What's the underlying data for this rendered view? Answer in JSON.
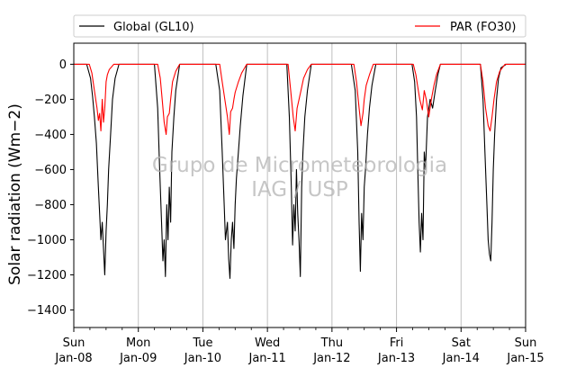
{
  "chart_data": {
    "type": "line",
    "ylabel": "Solar radiation",
    "ylabel_unit": "(Wm−2)",
    "ylim": [
      -1500,
      120
    ],
    "yticks": [
      0,
      -200,
      -400,
      -600,
      -800,
      -1000,
      -1200,
      -1400
    ],
    "xlim": [
      "2018-01-08",
      "2018-01-15"
    ],
    "xticks": [
      {
        "day": "Sun",
        "date": "Jan-08"
      },
      {
        "day": "Mon",
        "date": "Jan-09"
      },
      {
        "day": "Tue",
        "date": "Jan-10"
      },
      {
        "day": "Wed",
        "date": "Jan-11"
      },
      {
        "day": "Thu",
        "date": "Jan-12"
      },
      {
        "day": "Fri",
        "date": "Jan-13"
      },
      {
        "day": "Sat",
        "date": "Jan-14"
      },
      {
        "day": "Sun",
        "date": "Jan-15"
      }
    ],
    "grid": "vertical at day boundaries",
    "legend_position": "top, above plot",
    "watermark": [
      "Grupo de Micrometeorologia",
      "IAG / USP"
    ],
    "series": [
      {
        "name": "Global (GL10)",
        "color": "#000000",
        "points": [
          [
            0.0,
            0
          ],
          [
            0.2,
            0
          ],
          [
            0.26,
            -80
          ],
          [
            0.29,
            -180
          ],
          [
            0.32,
            -300
          ],
          [
            0.35,
            -450
          ],
          [
            0.38,
            -700
          ],
          [
            0.4,
            -850
          ],
          [
            0.42,
            -1000
          ],
          [
            0.44,
            -900
          ],
          [
            0.46,
            -1050
          ],
          [
            0.48,
            -1200
          ],
          [
            0.5,
            -950
          ],
          [
            0.52,
            -800
          ],
          [
            0.54,
            -600
          ],
          [
            0.57,
            -400
          ],
          [
            0.6,
            -200
          ],
          [
            0.64,
            -80
          ],
          [
            0.7,
            0
          ],
          [
            1.0,
            0
          ],
          [
            1.0,
            0
          ],
          [
            1.25,
            0
          ],
          [
            1.3,
            -250
          ],
          [
            1.33,
            -600
          ],
          [
            1.36,
            -900
          ],
          [
            1.38,
            -1120
          ],
          [
            1.4,
            -1000
          ],
          [
            1.42,
            -1210
          ],
          [
            1.44,
            -800
          ],
          [
            1.46,
            -1000
          ],
          [
            1.48,
            -700
          ],
          [
            1.5,
            -900
          ],
          [
            1.52,
            -500
          ],
          [
            1.55,
            -300
          ],
          [
            1.58,
            -150
          ],
          [
            1.64,
            0
          ],
          [
            2.0,
            0
          ],
          [
            2.0,
            0
          ],
          [
            2.2,
            0
          ],
          [
            2.26,
            -150
          ],
          [
            2.3,
            -500
          ],
          [
            2.33,
            -800
          ],
          [
            2.35,
            -1000
          ],
          [
            2.38,
            -900
          ],
          [
            2.4,
            -1110
          ],
          [
            2.42,
            -1220
          ],
          [
            2.44,
            -1000
          ],
          [
            2.46,
            -900
          ],
          [
            2.48,
            -1050
          ],
          [
            2.5,
            -800
          ],
          [
            2.52,
            -650
          ],
          [
            2.55,
            -500
          ],
          [
            2.58,
            -350
          ],
          [
            2.62,
            -180
          ],
          [
            2.68,
            0
          ],
          [
            3.0,
            0
          ],
          [
            3.0,
            0
          ],
          [
            3.3,
            0
          ],
          [
            3.34,
            -300
          ],
          [
            3.37,
            -700
          ],
          [
            3.39,
            -1030
          ],
          [
            3.41,
            -800
          ],
          [
            3.43,
            -950
          ],
          [
            3.45,
            -600
          ],
          [
            3.47,
            -850
          ],
          [
            3.49,
            -1010
          ],
          [
            3.51,
            -1210
          ],
          [
            3.53,
            -700
          ],
          [
            3.55,
            -500
          ],
          [
            3.58,
            -300
          ],
          [
            3.62,
            -150
          ],
          [
            3.68,
            0
          ],
          [
            4.0,
            0
          ],
          [
            4.0,
            0
          ],
          [
            4.3,
            0
          ],
          [
            4.36,
            -150
          ],
          [
            4.4,
            -500
          ],
          [
            4.42,
            -900
          ],
          [
            4.44,
            -1180
          ],
          [
            4.46,
            -850
          ],
          [
            4.48,
            -1000
          ],
          [
            4.5,
            -700
          ],
          [
            4.52,
            -600
          ],
          [
            4.55,
            -400
          ],
          [
            4.58,
            -250
          ],
          [
            4.62,
            -120
          ],
          [
            4.68,
            0
          ],
          [
            5.0,
            0
          ],
          [
            5.0,
            0
          ],
          [
            5.24,
            0
          ],
          [
            5.28,
            -100
          ],
          [
            5.31,
            -300
          ],
          [
            5.33,
            -600
          ],
          [
            5.35,
            -900
          ],
          [
            5.37,
            -1070
          ],
          [
            5.39,
            -850
          ],
          [
            5.41,
            -1000
          ],
          [
            5.43,
            -500
          ],
          [
            5.45,
            -600
          ],
          [
            5.48,
            -300
          ],
          [
            5.52,
            -200
          ],
          [
            5.56,
            -250
          ],
          [
            5.6,
            -150
          ],
          [
            5.64,
            -60
          ],
          [
            5.68,
            0
          ],
          [
            6.0,
            0
          ],
          [
            6.0,
            0
          ],
          [
            6.3,
            0
          ],
          [
            6.34,
            -200
          ],
          [
            6.37,
            -500
          ],
          [
            6.4,
            -800
          ],
          [
            6.42,
            -1000
          ],
          [
            6.44,
            -1080
          ],
          [
            6.46,
            -1120
          ],
          [
            6.48,
            -900
          ],
          [
            6.5,
            -600
          ],
          [
            6.52,
            -400
          ],
          [
            6.55,
            -200
          ],
          [
            6.58,
            -80
          ],
          [
            6.62,
            -20
          ],
          [
            6.7,
            0
          ],
          [
            7.0,
            0
          ]
        ]
      },
      {
        "name": "PAR (FO30)",
        "color": "#ff0000",
        "points": [
          [
            0.0,
            0
          ],
          [
            0.24,
            0
          ],
          [
            0.28,
            -50
          ],
          [
            0.32,
            -150
          ],
          [
            0.36,
            -250
          ],
          [
            0.38,
            -320
          ],
          [
            0.4,
            -280
          ],
          [
            0.42,
            -380
          ],
          [
            0.44,
            -200
          ],
          [
            0.46,
            -330
          ],
          [
            0.48,
            -250
          ],
          [
            0.5,
            -100
          ],
          [
            0.52,
            -60
          ],
          [
            0.55,
            -30
          ],
          [
            0.62,
            0
          ],
          [
            1.0,
            0
          ],
          [
            1.0,
            0
          ],
          [
            1.3,
            0
          ],
          [
            1.34,
            -80
          ],
          [
            1.37,
            -200
          ],
          [
            1.4,
            -330
          ],
          [
            1.43,
            -400
          ],
          [
            1.45,
            -300
          ],
          [
            1.48,
            -280
          ],
          [
            1.5,
            -200
          ],
          [
            1.53,
            -100
          ],
          [
            1.58,
            -40
          ],
          [
            1.64,
            0
          ],
          [
            2.0,
            0
          ],
          [
            2.0,
            0
          ],
          [
            2.26,
            0
          ],
          [
            2.3,
            -100
          ],
          [
            2.34,
            -200
          ],
          [
            2.38,
            -300
          ],
          [
            2.41,
            -400
          ],
          [
            2.43,
            -270
          ],
          [
            2.46,
            -250
          ],
          [
            2.48,
            -200
          ],
          [
            2.5,
            -160
          ],
          [
            2.55,
            -100
          ],
          [
            2.6,
            -50
          ],
          [
            2.68,
            0
          ],
          [
            3.0,
            0
          ],
          [
            3.0,
            0
          ],
          [
            3.32,
            0
          ],
          [
            3.36,
            -150
          ],
          [
            3.4,
            -300
          ],
          [
            3.43,
            -380
          ],
          [
            3.46,
            -250
          ],
          [
            3.49,
            -200
          ],
          [
            3.52,
            -150
          ],
          [
            3.56,
            -80
          ],
          [
            3.62,
            -30
          ],
          [
            3.68,
            0
          ],
          [
            4.0,
            0
          ],
          [
            4.0,
            0
          ],
          [
            4.34,
            0
          ],
          [
            4.38,
            -100
          ],
          [
            4.42,
            -250
          ],
          [
            4.45,
            -350
          ],
          [
            4.48,
            -280
          ],
          [
            4.5,
            -200
          ],
          [
            4.53,
            -120
          ],
          [
            4.58,
            -60
          ],
          [
            4.64,
            0
          ],
          [
            5.0,
            0
          ],
          [
            5.0,
            0
          ],
          [
            5.26,
            0
          ],
          [
            5.3,
            -60
          ],
          [
            5.33,
            -130
          ],
          [
            5.36,
            -200
          ],
          [
            5.4,
            -260
          ],
          [
            5.43,
            -150
          ],
          [
            5.46,
            -200
          ],
          [
            5.5,
            -300
          ],
          [
            5.54,
            -200
          ],
          [
            5.58,
            -120
          ],
          [
            5.62,
            -60
          ],
          [
            5.68,
            0
          ],
          [
            6.0,
            0
          ],
          [
            6.0,
            0
          ],
          [
            6.3,
            0
          ],
          [
            6.34,
            -100
          ],
          [
            6.38,
            -250
          ],
          [
            6.42,
            -350
          ],
          [
            6.45,
            -380
          ],
          [
            6.48,
            -300
          ],
          [
            6.51,
            -200
          ],
          [
            6.55,
            -100
          ],
          [
            6.6,
            -40
          ],
          [
            6.68,
            0
          ],
          [
            7.0,
            0
          ]
        ]
      }
    ]
  }
}
